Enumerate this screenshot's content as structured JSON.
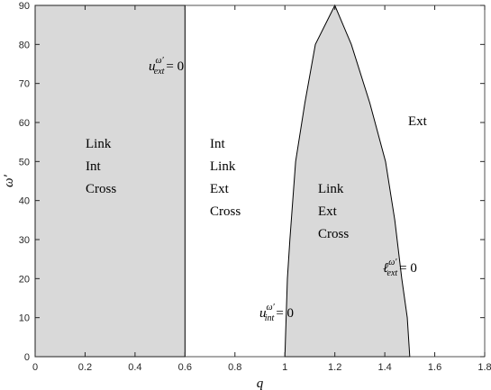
{
  "chart_data": {
    "type": "region",
    "xlabel": "q",
    "ylabel": "ω′",
    "xlim": [
      0,
      1.8
    ],
    "ylim": [
      0,
      90
    ],
    "xticks": [
      0,
      0.2,
      0.4,
      0.6,
      0.8,
      1,
      1.2,
      1.4,
      1.6,
      1.8
    ],
    "yticks": [
      0,
      10,
      20,
      30,
      40,
      50,
      60,
      70,
      80,
      90
    ],
    "fill": "#d9d9d9",
    "stroke": "#000000",
    "regions": [
      {
        "x": [
          0,
          0.6,
          0.6,
          0
        ],
        "y": [
          0,
          0,
          90,
          90
        ]
      },
      {
        "x": [
          1,
          1.005,
          1.01,
          1.02,
          1.043,
          1.08,
          1.122,
          1.2,
          1.266,
          1.34,
          1.403,
          1.44,
          1.468,
          1.49,
          1.5
        ],
        "y": [
          0,
          10,
          20,
          30,
          50,
          65,
          80,
          90,
          80,
          65,
          50,
          35,
          20,
          10,
          0
        ]
      }
    ],
    "region_labels": [
      [
        "Link",
        "Int",
        "Cross"
      ],
      [
        "Int",
        "Link",
        "Ext",
        "Cross"
      ],
      [
        "Link",
        "Ext",
        "Cross"
      ],
      [
        "Ext"
      ]
    ],
    "boundary_labels": [
      {
        "base": "u",
        "sup": "ω′",
        "sub": "ext",
        "eq": "= 0"
      },
      {
        "base": "u",
        "sup": "ω′",
        "sub": "int",
        "eq": "= 0"
      },
      {
        "base": "ℓ",
        "sup": "ω′",
        "sub": "ext",
        "eq": "= 0"
      }
    ]
  }
}
